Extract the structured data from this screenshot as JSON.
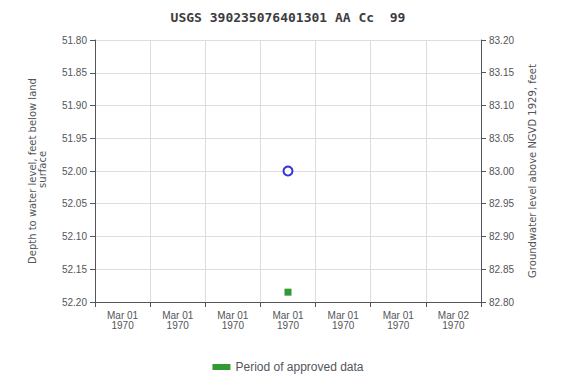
{
  "chart_data": {
    "type": "scatter",
    "title": "USGS 390235076401301 AA Cc  99",
    "ylabel": "Depth to water level, feet below land\n surface",
    "y2label": "Groundwater level above NGVD 1929, feet",
    "categories": [
      "Mar 01\n1970",
      "Mar 01\n1970",
      "Mar 01\n1970",
      "Mar 01\n1970",
      "Mar 01\n1970",
      "Mar 01\n1970",
      "Mar 02\n1970"
    ],
    "ylim": [
      52.2,
      51.8
    ],
    "yticks": [
      {
        "value": 51.8,
        "label": "51.80"
      },
      51.85,
      {
        "value": 51.9,
        "label": "51.90"
      },
      51.95,
      {
        "value": 52.0,
        "label": "52.00"
      },
      52.05,
      {
        "value": 52.1,
        "label": "52.10"
      },
      52.15,
      {
        "value": 52.2,
        "label": "52.20"
      }
    ],
    "y2lim": [
      82.8,
      83.2
    ],
    "y2ticks": [
      {
        "value": 82.8,
        "label": "82.80"
      },
      82.85,
      {
        "value": 82.9,
        "label": "82.90"
      },
      82.95,
      {
        "value": 83.0,
        "label": "83.00"
      },
      83.05,
      {
        "value": 83.1,
        "label": "83.10"
      },
      83.15,
      {
        "value": 83.2,
        "label": "83.20"
      }
    ],
    "grid": true,
    "legend": "bottom",
    "series": [
      {
        "values": [
          null,
          null,
          null,
          52.0,
          null,
          null,
          null
        ],
        "color": "#0000cc",
        "marker": "emptyCircle"
      },
      {
        "name": "Period of approved data",
        "values": [
          null,
          null,
          null,
          52.185,
          null,
          null,
          null
        ],
        "color": "#008000",
        "marker": "square"
      }
    ]
  }
}
